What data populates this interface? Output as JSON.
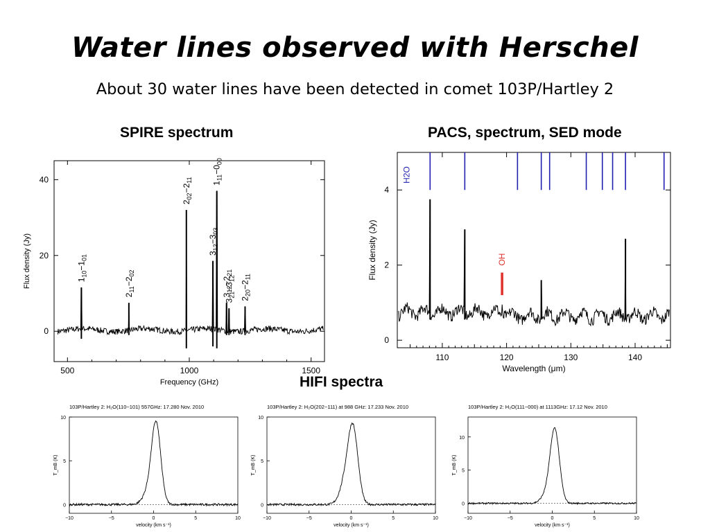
{
  "slide": {
    "title": "Water lines observed with Herschel",
    "subtitle": "About 30 water lines have been detected in comet 103P/Hartley 2"
  },
  "sections": {
    "spire": "SPIRE spectrum",
    "pacs": "PACS, spectrum, SED mode",
    "hifi": "HIFI spectra"
  },
  "chart_data": [
    {
      "id": "spire",
      "type": "line",
      "xlabel": "Frequency (GHz)",
      "ylabel": "Flux density (Jy)",
      "xlim": [
        445,
        1555
      ],
      "ylim": [
        -8,
        45
      ],
      "xticks": [
        500,
        1000,
        1500
      ],
      "yticks": [
        0,
        20,
        40
      ],
      "grid": false,
      "color": "#000000",
      "lines": [
        {
          "x": 557,
          "peak": 11.5,
          "dip": -2,
          "label_main": "1",
          "label_sub1": "10",
          "label_mid": "−1",
          "label_sub2": "01"
        },
        {
          "x": 752,
          "peak": 7.5,
          "dip": -1,
          "label_main": "2",
          "label_sub1": "11",
          "label_mid": "−2",
          "label_sub2": "02"
        },
        {
          "x": 988,
          "peak": 32,
          "dip": -4.5,
          "label_main": "2",
          "label_sub1": "02",
          "label_mid": "−2",
          "label_sub2": "11"
        },
        {
          "x": 1097,
          "peak": 18.5,
          "dip": -4,
          "label_main": "3",
          "label_sub1": "12",
          "label_mid": "−3",
          "label_sub2": "03"
        },
        {
          "x": 1113,
          "peak": 37,
          "dip": -4.5,
          "label_main": "1",
          "label_sub1": "11",
          "label_mid": "−0",
          "label_sub2": "00"
        },
        {
          "x": 1153,
          "peak": 7.5,
          "dip": -1,
          "label_main": "3",
          "label_sub1": "12",
          "label_mid": "−2",
          "label_sub2": "21"
        },
        {
          "x": 1163,
          "peak": 6,
          "dip": -1,
          "label_main": "3",
          "label_sub1": "21",
          "label_mid": "−3",
          "label_sub2": "12"
        },
        {
          "x": 1229,
          "peak": 6.5,
          "dip": -1,
          "label_main": "2",
          "label_sub1": "20",
          "label_mid": "−2",
          "label_sub2": "11"
        }
      ]
    },
    {
      "id": "pacs",
      "type": "line",
      "xlabel": "Wavelength (μm)",
      "ylabel": "Flux density (Jy)",
      "xlim": [
        103,
        145.5
      ],
      "ylim": [
        -0.2,
        5
      ],
      "xticks": [
        110,
        120,
        130,
        140
      ],
      "yticks": [
        0,
        2,
        4
      ],
      "grid": false,
      "continuum": 0.75,
      "noise": 0.15,
      "color": "#000000",
      "h2o_label": "H2O",
      "h2o_color": "#1f1fb0",
      "h2o_markers": [
        108.1,
        113.5,
        121.7,
        125.4,
        126.7,
        132.4,
        134.9,
        136.5,
        138.5,
        144.5
      ],
      "oh_label": "OH",
      "oh_color": "#e0302a",
      "oh_x": 119.3,
      "lines": [
        {
          "x": 108.1,
          "peak": 3.75
        },
        {
          "x": 113.5,
          "peak": 2.95
        },
        {
          "x": 125.4,
          "peak": 1.6
        },
        {
          "x": 138.5,
          "peak": 2.7
        },
        {
          "x": 119.3,
          "peak": 0.95
        }
      ]
    },
    {
      "id": "hifi-557",
      "type": "line",
      "title": "103P/Hartley 2: H₂O(110−101) 557GHz: 17.280 Nov. 2010",
      "xlabel": "velocity (km s⁻¹)",
      "ylabel": "T_mB (K)",
      "xlim": [
        -10,
        10
      ],
      "ylim": [
        -1,
        10
      ],
      "xticks": [
        -10,
        -5,
        0,
        5,
        10
      ],
      "yticks": [
        0,
        5,
        10
      ],
      "peak": 9.2,
      "center": 0.3,
      "sigma": 0.55,
      "wing": 1.2
    },
    {
      "id": "hifi-988",
      "type": "line",
      "title": "103P/Hartley 2: H₂O(202−111) at 988 GHz: 17.233 Nov. 2010",
      "xlabel": "velocity (km s⁻¹)",
      "ylabel": "T_mB (K)",
      "xlim": [
        -10,
        10
      ],
      "ylim": [
        -1,
        10
      ],
      "xticks": [
        -10,
        -5,
        0,
        5,
        10
      ],
      "yticks": [
        0,
        5,
        10
      ],
      "peak": 8.7,
      "center": 0.2,
      "sigma": 0.6,
      "wing": 2.0
    },
    {
      "id": "hifi-1113",
      "type": "line",
      "title": "103P/Hartley 2: H₂O(111−000) at 1113GHz: 17.12 Nov. 2010",
      "xlabel": "velocity (km s⁻¹)",
      "ylabel": "T_mB (K)",
      "xlim": [
        -10,
        10
      ],
      "ylim": [
        -1.5,
        13
      ],
      "xticks": [
        -10,
        -5,
        0,
        5,
        10
      ],
      "yticks": [
        0,
        5,
        10
      ],
      "peak": 11,
      "center": 0.3,
      "sigma": 0.55,
      "wing": 1.2
    }
  ]
}
